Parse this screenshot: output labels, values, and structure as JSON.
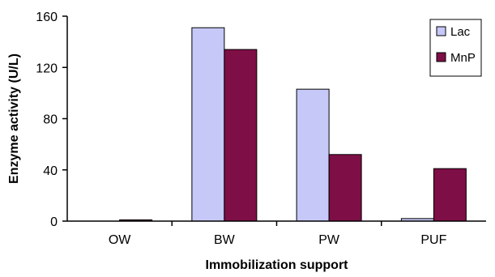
{
  "chart_data": {
    "type": "bar",
    "categories": [
      "OW",
      "BW",
      "PW",
      "PUF"
    ],
    "series": [
      {
        "name": "Lac",
        "values": [
          0,
          151,
          103,
          2
        ],
        "color": "#c6c8f8"
      },
      {
        "name": "MnP",
        "values": [
          1,
          134,
          52,
          41
        ],
        "color": "#7e0e46"
      }
    ],
    "xlabel": "Immobilization support",
    "ylabel": "Enzyme activity (U/L)",
    "ylim": [
      0,
      160
    ],
    "yticks": [
      0,
      40,
      80,
      120,
      160
    ],
    "grid": false,
    "legend_position": "top-right"
  }
}
